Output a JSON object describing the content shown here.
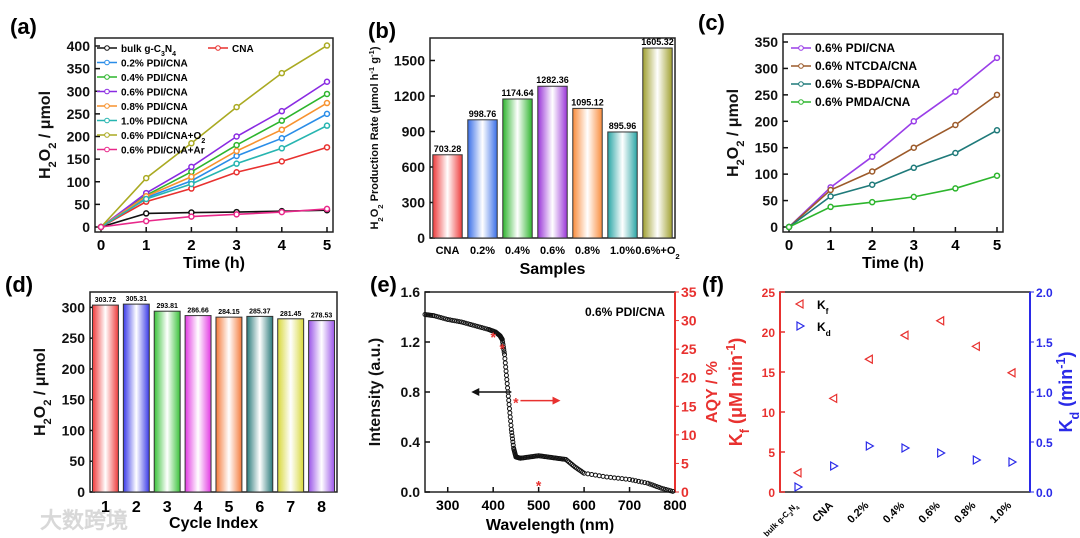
{
  "watermark": "大数跨境",
  "chart_data": [
    {
      "id": "a",
      "panel_label": "(a)",
      "type": "line",
      "xlabel": "Time (h)",
      "ylabel": "H_{2}O_{2} / μmol",
      "xlim": [
        0,
        5
      ],
      "ylim": [
        0,
        400
      ],
      "xticks": [
        0,
        1,
        2,
        3,
        4,
        5
      ],
      "yticks": [
        0,
        50,
        100,
        150,
        200,
        250,
        300,
        350,
        400
      ],
      "x": [
        0,
        1,
        2,
        3,
        4,
        5
      ],
      "legend": "top-left",
      "series": [
        {
          "name": "bulk g-C_{3}N_{4}",
          "color": "#111111",
          "values": [
            0,
            30,
            32,
            33,
            35,
            37
          ]
        },
        {
          "name": "CNA",
          "color": "#e8312f",
          "values": [
            0,
            56,
            85,
            121,
            145,
            176
          ]
        },
        {
          "name": "0.2% PDI/CNA",
          "color": "#2a8de8",
          "values": [
            0,
            65,
            102,
            157,
            196,
            250
          ]
        },
        {
          "name": "0.4% PDI/CNA",
          "color": "#2db52d",
          "values": [
            0,
            70,
            122,
            181,
            235,
            294
          ]
        },
        {
          "name": "0.6% PDI/CNA",
          "color": "#8a2be2",
          "values": [
            0,
            75,
            133,
            200,
            256,
            321
          ]
        },
        {
          "name": "0.8% PDI/CNA",
          "color": "#f7922f",
          "values": [
            0,
            68,
            111,
            168,
            215,
            274
          ]
        },
        {
          "name": "1.0% PDI/CNA",
          "color": "#27b5b0",
          "values": [
            0,
            62,
            95,
            140,
            174,
            224
          ]
        },
        {
          "name": "0.6% PDI/CNA+O_{2}",
          "color": "#aaaa22",
          "values": [
            0,
            108,
            185,
            265,
            340,
            401
          ]
        },
        {
          "name": "0.6% PDI/CNA+Ar",
          "color": "#e8288a",
          "values": [
            0,
            13,
            23,
            28,
            33,
            40
          ]
        }
      ]
    },
    {
      "id": "b",
      "panel_label": "(b)",
      "type": "bar",
      "xlabel": "Samples",
      "ylabel": "H_{2}O_{2} Production Rate (μmol h^{-1} g^{-1})",
      "ylim": [
        0,
        1690
      ],
      "yticks": [
        0,
        300,
        600,
        900,
        1200,
        1500
      ],
      "categories": [
        "CNA",
        "0.2%",
        "0.4%",
        "0.6%",
        "0.8%",
        "1.0%",
        "0.6%+O_{2}"
      ],
      "values": [
        703.28,
        998.76,
        1174.64,
        1282.36,
        1095.12,
        895.96,
        1605.32
      ],
      "labels": [
        "703.28",
        "998.76",
        "1174.64",
        "1282.36",
        "1095.12",
        "895.96",
        "1605.32"
      ],
      "colors": [
        "#ee3b3b",
        "#3a6fe8",
        "#2fb52f",
        "#9a35d8",
        "#f98c3c",
        "#2aa5a5",
        "#a0a030"
      ]
    },
    {
      "id": "c",
      "panel_label": "(c)",
      "type": "line",
      "xlabel": "Time (h)",
      "ylabel": "H_{2}O_{2} / μmol",
      "xlim": [
        0,
        5
      ],
      "ylim": [
        0,
        350
      ],
      "xticks": [
        0,
        1,
        2,
        3,
        4,
        5
      ],
      "yticks": [
        0,
        50,
        100,
        150,
        200,
        250,
        300,
        350
      ],
      "x": [
        0,
        1,
        2,
        3,
        4,
        5
      ],
      "legend": "top-left",
      "series": [
        {
          "name": "0.6% PDI/CNA",
          "color": "#9a3ee8",
          "values": [
            0,
            75,
            133,
            200,
            256,
            320
          ]
        },
        {
          "name": "0.6% NTCDA/CNA",
          "color": "#9c5a2a",
          "values": [
            0,
            70,
            105,
            150,
            193,
            250
          ]
        },
        {
          "name": "0.6% S-BDPA/CNA",
          "color": "#1f7a7a",
          "values": [
            0,
            58,
            80,
            112,
            140,
            183
          ]
        },
        {
          "name": "0.6% PMDA/CNA",
          "color": "#2db52d",
          "values": [
            0,
            38,
            47,
            57,
            73,
            97
          ]
        }
      ]
    },
    {
      "id": "d",
      "panel_label": "(d)",
      "type": "bar",
      "xlabel": "Cycle Index",
      "ylabel": "H_{2}O_{2} / μmol",
      "ylim": [
        0,
        325
      ],
      "yticks": [
        0,
        50,
        100,
        150,
        200,
        250,
        300
      ],
      "categories": [
        "1",
        "2",
        "3",
        "4",
        "5",
        "6",
        "7",
        "8"
      ],
      "values": [
        303.72,
        305.31,
        293.81,
        286.66,
        284.15,
        285.37,
        281.45,
        278.53
      ],
      "labels": [
        "303.72",
        "305.31",
        "293.81",
        "286.66",
        "284.15",
        "285.37",
        "281.45",
        "278.53"
      ],
      "colors": [
        "#ee3b3b",
        "#3a3ae8",
        "#3ac23a",
        "#e23ae2",
        "#f47a3a",
        "#2a7a7a",
        "#d8d83a",
        "#9a55e8"
      ]
    },
    {
      "id": "e",
      "panel_label": "(e)",
      "type": "line",
      "annotation": "0.6% PDI/CNA",
      "xlabel": "Wavelength (nm)",
      "ylabel": "Intensity (a.u.)",
      "y2label": "AQY / %",
      "xlim": [
        250,
        800
      ],
      "ylim": [
        0,
        1.6
      ],
      "y2lim": [
        0,
        35
      ],
      "xticks": [
        300,
        400,
        500,
        600,
        700,
        800
      ],
      "yticks": [
        0,
        0.4,
        0.8,
        1.2,
        1.6
      ],
      "ytick_labels": [
        "0.0",
        "0.4",
        "0.8",
        "1.2",
        "1.6"
      ],
      "y2ticks": [
        0,
        5,
        10,
        15,
        20,
        25,
        30,
        35
      ],
      "absorbance": {
        "x": [
          250,
          270,
          300,
          330,
          360,
          390,
          405,
          415,
          420,
          425,
          430,
          435,
          440,
          445,
          450,
          460,
          480,
          500,
          520,
          540,
          560,
          580,
          600,
          650,
          700,
          740,
          770,
          800
        ],
        "y": [
          1.42,
          1.41,
          1.38,
          1.36,
          1.33,
          1.3,
          1.28,
          1.25,
          1.22,
          1.1,
          0.9,
          0.7,
          0.5,
          0.35,
          0.28,
          0.27,
          0.28,
          0.29,
          0.28,
          0.27,
          0.26,
          0.2,
          0.15,
          0.12,
          0.1,
          0.07,
          0.03,
          0.0
        ]
      },
      "aqy": {
        "x": [
          400,
          420,
          450,
          500
        ],
        "y": [
          27.5,
          25.5,
          16,
          1.5
        ]
      }
    },
    {
      "id": "f",
      "panel_label": "(f)",
      "type": "scatter",
      "ylabel": "K_{f} (μM min^{-1})",
      "y2label": "K_{d} (min^{-1})",
      "categories": [
        "bulk g-C_{3}N_{4}",
        "CNA",
        "0.2%",
        "0.4%",
        "0.6%",
        "0.8%",
        "1.0%"
      ],
      "ylim": [
        0,
        25
      ],
      "y2lim": [
        0,
        2.0
      ],
      "yticks": [
        0,
        5,
        10,
        15,
        20,
        25
      ],
      "y2ticks": [
        0,
        0.5,
        1.0,
        1.5,
        2.0
      ],
      "y2tick_labels": [
        "0.0",
        "0.5",
        "1.0",
        "1.5",
        "2.0"
      ],
      "series": [
        {
          "name": "K_{f}",
          "axis": "left",
          "color": "#e8312f",
          "values": [
            2.4,
            11.7,
            16.6,
            19.6,
            21.4,
            18.2,
            14.9
          ]
        },
        {
          "name": "K_{d}",
          "axis": "right",
          "color": "#2a2ae8",
          "values": [
            0.05,
            0.26,
            0.46,
            0.44,
            0.39,
            0.32,
            0.3
          ]
        }
      ]
    }
  ]
}
